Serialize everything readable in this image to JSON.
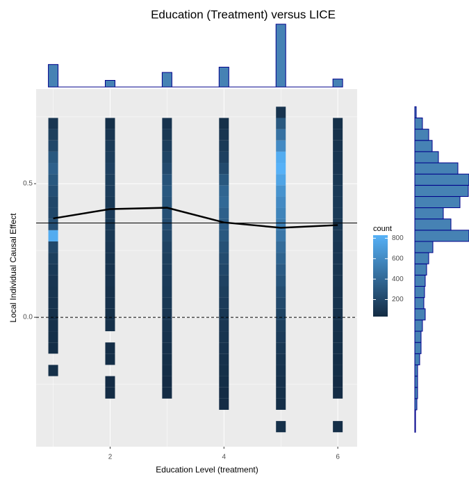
{
  "chart_data": [
    {
      "type": "heatmap",
      "title": "Education (Treatment) versus LICE",
      "xlabel": "Education Level (treatment)",
      "ylabel": "Local Individual Causal Effect",
      "x": [
        1,
        2,
        3,
        4,
        5,
        6
      ],
      "y_bins": [
        -0.43,
        -0.388,
        -0.346,
        -0.304,
        -0.262,
        -0.22,
        -0.178,
        -0.136,
        -0.094,
        -0.052,
        -0.01,
        0.032,
        0.074,
        0.116,
        0.158,
        0.2,
        0.242,
        0.284,
        0.326,
        0.368,
        0.41,
        0.452,
        0.494,
        0.536,
        0.578,
        0.62,
        0.662,
        0.704,
        0.746,
        0.788
      ],
      "z": [
        [
          null,
          null,
          null,
          null,
          null,
          60,
          null,
          50,
          60,
          70,
          70,
          80,
          90,
          100,
          120,
          150,
          200,
          800,
          250,
          200,
          200,
          250,
          300,
          350,
          300,
          200,
          150,
          100,
          null
        ],
        [
          null,
          null,
          null,
          40,
          40,
          null,
          50,
          50,
          null,
          60,
          60,
          70,
          70,
          80,
          80,
          90,
          100,
          110,
          120,
          130,
          120,
          140,
          150,
          160,
          140,
          120,
          90,
          60,
          null
        ],
        [
          null,
          null,
          null,
          40,
          40,
          50,
          60,
          70,
          80,
          90,
          100,
          110,
          120,
          130,
          140,
          150,
          170,
          200,
          230,
          250,
          280,
          300,
          270,
          220,
          180,
          140,
          110,
          80,
          null
        ],
        [
          null,
          null,
          40,
          40,
          50,
          60,
          70,
          80,
          90,
          100,
          110,
          130,
          150,
          170,
          200,
          230,
          260,
          300,
          320,
          350,
          400,
          380,
          300,
          220,
          160,
          120,
          90,
          60,
          null
        ],
        [
          60,
          null,
          50,
          60,
          70,
          80,
          90,
          110,
          130,
          150,
          180,
          210,
          240,
          280,
          320,
          370,
          420,
          480,
          520,
          560,
          600,
          650,
          750,
          850,
          800,
          600,
          450,
          300,
          80
        ],
        [
          50,
          null,
          null,
          40,
          40,
          50,
          50,
          60,
          60,
          70,
          70,
          80,
          80,
          90,
          90,
          100,
          100,
          110,
          110,
          120,
          120,
          120,
          110,
          100,
          90,
          80,
          70,
          60,
          null
        ]
      ],
      "colorscale": [
        "#132B43",
        "#56B1F7"
      ],
      "clim": [
        33,
        830
      ],
      "colorbar_title": "count",
      "colorbar_ticks": [
        200,
        400,
        600,
        800
      ],
      "line": {
        "values": [
          0.37,
          0.405,
          0.41,
          0.355,
          0.335,
          0.345
        ],
        "color": "#000000"
      },
      "reference_lines": [
        {
          "y": 0.353,
          "style": "solid"
        },
        {
          "y": 0,
          "style": "dashed"
        }
      ],
      "xlim": [
        0.7,
        6.34
      ],
      "ylim": [
        -0.484,
        0.854
      ],
      "xticks": [
        2,
        4,
        6
      ],
      "yticks": [
        {
          "value": 0,
          "label": "0.0"
        },
        {
          "value": 0.5,
          "label": "0.5"
        }
      ],
      "minor_xticks": [
        1,
        3,
        5
      ],
      "minor_yticks": [
        -0.25,
        0.25,
        0.75
      ],
      "grid": true
    },
    {
      "type": "bar",
      "x": [
        1,
        2,
        3,
        4,
        5,
        6
      ],
      "values": [
        3400,
        1000,
        2200,
        3000,
        9500,
        1200
      ],
      "color": "#4682B4",
      "edgecolor": "#00008B",
      "xlim": [
        0.7,
        6.34
      ],
      "ylim": [
        0,
        10000
      ]
    },
    {
      "type": "histogram",
      "orientation": "horizontal",
      "bins": [
        -0.43,
        -0.388,
        -0.346,
        -0.304,
        -0.262,
        -0.22,
        -0.178,
        -0.136,
        -0.094,
        -0.052,
        -0.01,
        0.032,
        0.074,
        0.116,
        0.158,
        0.2,
        0.242,
        0.284,
        0.326,
        0.368,
        0.41,
        0.452,
        0.494,
        0.536,
        0.578,
        0.62,
        0.662,
        0.704,
        0.746,
        0.788
      ],
      "values": [
        30,
        30,
        90,
        120,
        120,
        120,
        210,
        270,
        270,
        330,
        450,
        390,
        420,
        450,
        510,
        600,
        780,
        2340,
        1560,
        1230,
        1950,
        2310,
        2340,
        1860,
        1020,
        750,
        600,
        330,
        60
      ],
      "color": "#4682B4",
      "edgecolor": "#00008B",
      "xlim": [
        0,
        2400
      ],
      "ylim": [
        -0.484,
        0.854
      ]
    }
  ]
}
